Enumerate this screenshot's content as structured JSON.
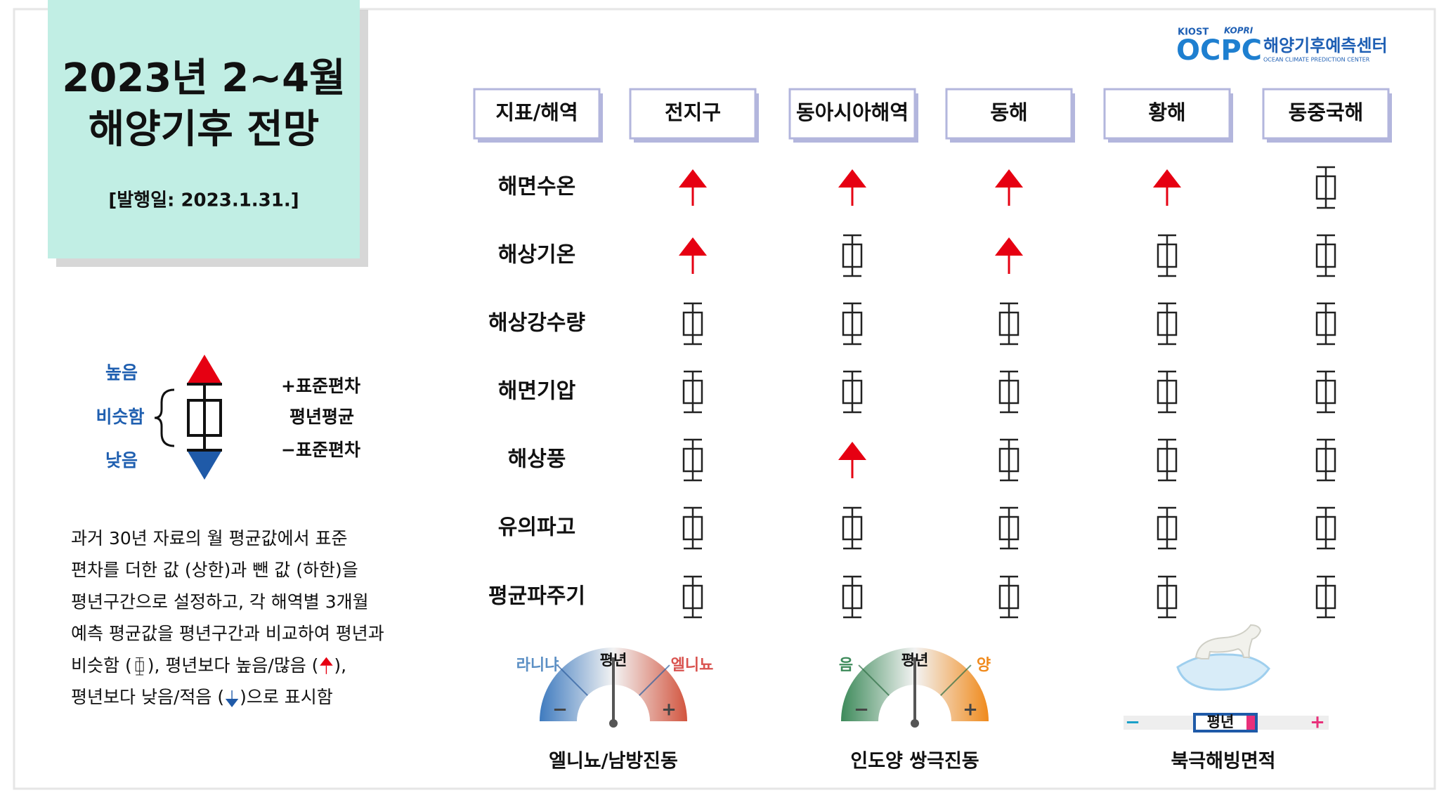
{
  "header": {
    "title": [
      "2023년 2~4월",
      "해양기후 전망"
    ],
    "date": "[발행일: 2023.1.31.]"
  },
  "logo": {
    "org1": "KIOST",
    "org2": "KOPRI",
    "mark": "OCPC",
    "name": "해양기후예측센터",
    "sub": "OCEAN CLIMATE PREDICTION CENTER"
  },
  "legend": {
    "high": "높음",
    "similar": "비슷함",
    "low": "낮음",
    "plus": "+표준편차",
    "mean": "평년평균",
    "minus": "−표준편차"
  },
  "note": {
    "lines": [
      [
        "과거 30년 자료의 월 평균값에서 표준"
      ],
      [
        "편차를 더한 값 (상한)과 뺀 값 (하한)을"
      ],
      [
        "평년구간으로 설정하고, 각 해역별 3개월"
      ],
      [
        "예측 평균값을 평년구간과 비교하여 평년과"
      ],
      [
        "비슷함 (",
        "), 평년보다 높음/많음 (",
        "),"
      ],
      [
        "평년보다 낮음/적음 (",
        ")으로 표시함"
      ]
    ]
  },
  "table": {
    "header": [
      "지표/해역",
      "전지구",
      "동아시아해역",
      "동해",
      "황해",
      "동중국해"
    ],
    "rows": [
      {
        "label": "해면수온",
        "cells": [
          "높음",
          "높음",
          "높음",
          "높음",
          "비슷함"
        ]
      },
      {
        "label": "해상기온",
        "cells": [
          "높음",
          "비슷함",
          "높음",
          "비슷함",
          "비슷함"
        ]
      },
      {
        "label": "해상강수량",
        "cells": [
          "비슷함",
          "비슷함",
          "비슷함",
          "비슷함",
          "비슷함"
        ]
      },
      {
        "label": "해면기압",
        "cells": [
          "비슷함",
          "비슷함",
          "비슷함",
          "비슷함",
          "비슷함"
        ]
      },
      {
        "label": "해상풍",
        "cells": [
          "비슷함",
          "높음",
          "비슷함",
          "비슷함",
          "비슷함"
        ]
      },
      {
        "label": "유의파고",
        "cells": [
          "비슷함",
          "비슷함",
          "비슷함",
          "비슷함",
          "비슷함"
        ]
      },
      {
        "label": "평균파주기",
        "cells": [
          "비슷함",
          "비슷함",
          "비슷함",
          "비슷함",
          "비슷함"
        ]
      }
    ]
  },
  "gauges": [
    {
      "left": "라니냐",
      "center": "평년",
      "right": "엘니뇨",
      "minus": "−",
      "plus": "+",
      "title": "엘니뇨/남방진동"
    },
    {
      "left": "음",
      "center": "평년",
      "right": "양",
      "minus": "−",
      "plus": "+",
      "title": "인도양 쌍극진동"
    }
  ],
  "arctic": {
    "minus": "−",
    "center": "평년",
    "plus": "+",
    "title": "북극해빙면적"
  }
}
